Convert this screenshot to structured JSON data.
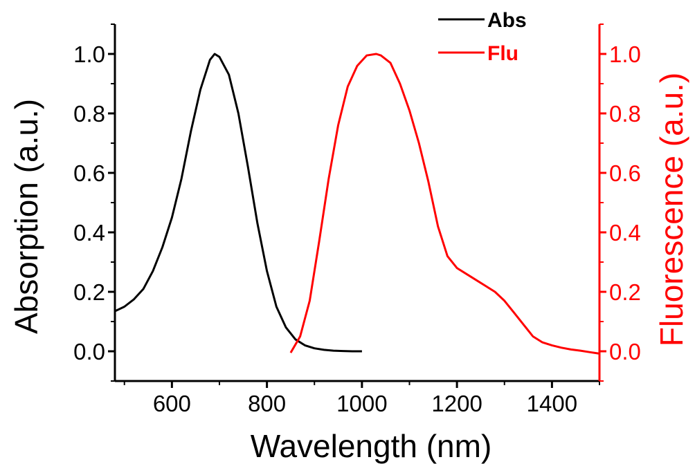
{
  "chart_data": {
    "type": "line",
    "xlabel": "Wavelength (nm)",
    "ylabel_left": "Absorption (a.u.)",
    "ylabel_right": "Fluorescence (a.u.)",
    "xlim": [
      480,
      1500
    ],
    "ylim_left": [
      -0.1,
      1.1
    ],
    "ylim_right": [
      -0.1,
      1.1
    ],
    "x_ticks": [
      600,
      800,
      1000,
      1200,
      1400
    ],
    "x_tick_labels": [
      "600",
      "800",
      "1000",
      "1200",
      "1400"
    ],
    "y_ticks": [
      0.0,
      0.2,
      0.4,
      0.6,
      0.8,
      1.0
    ],
    "y_tick_labels": [
      "0.0",
      "0.2",
      "0.4",
      "0.6",
      "0.8",
      "1.0"
    ],
    "legend_position": "top-right",
    "colors": {
      "abs": "#000000",
      "flu": "#ff0000"
    },
    "series": [
      {
        "name": "Abs",
        "axis": "left",
        "x": [
          480,
          500,
          520,
          540,
          560,
          580,
          600,
          620,
          640,
          660,
          680,
          690,
          700,
          720,
          740,
          760,
          780,
          800,
          820,
          840,
          860,
          880,
          900,
          920,
          940,
          960,
          980,
          1000
        ],
        "y": [
          0.135,
          0.15,
          0.175,
          0.21,
          0.27,
          0.35,
          0.45,
          0.58,
          0.74,
          0.88,
          0.98,
          1.0,
          0.99,
          0.93,
          0.8,
          0.62,
          0.43,
          0.27,
          0.15,
          0.08,
          0.04,
          0.02,
          0.01,
          0.005,
          0.002,
          0.001,
          0.0,
          0.0
        ]
      },
      {
        "name": "Flu",
        "axis": "right",
        "x": [
          850,
          870,
          890,
          910,
          930,
          950,
          970,
          990,
          1010,
          1030,
          1040,
          1060,
          1080,
          1100,
          1120,
          1140,
          1160,
          1180,
          1200,
          1220,
          1240,
          1260,
          1280,
          1300,
          1320,
          1340,
          1360,
          1380,
          1400,
          1420,
          1440,
          1460,
          1480,
          1500
        ],
        "y": [
          -0.005,
          0.05,
          0.17,
          0.37,
          0.58,
          0.76,
          0.89,
          0.96,
          0.995,
          1.0,
          0.995,
          0.97,
          0.9,
          0.81,
          0.7,
          0.57,
          0.42,
          0.32,
          0.28,
          0.26,
          0.24,
          0.22,
          0.2,
          0.17,
          0.13,
          0.09,
          0.05,
          0.03,
          0.02,
          0.012,
          0.006,
          0.002,
          -0.003,
          -0.008
        ]
      }
    ]
  }
}
